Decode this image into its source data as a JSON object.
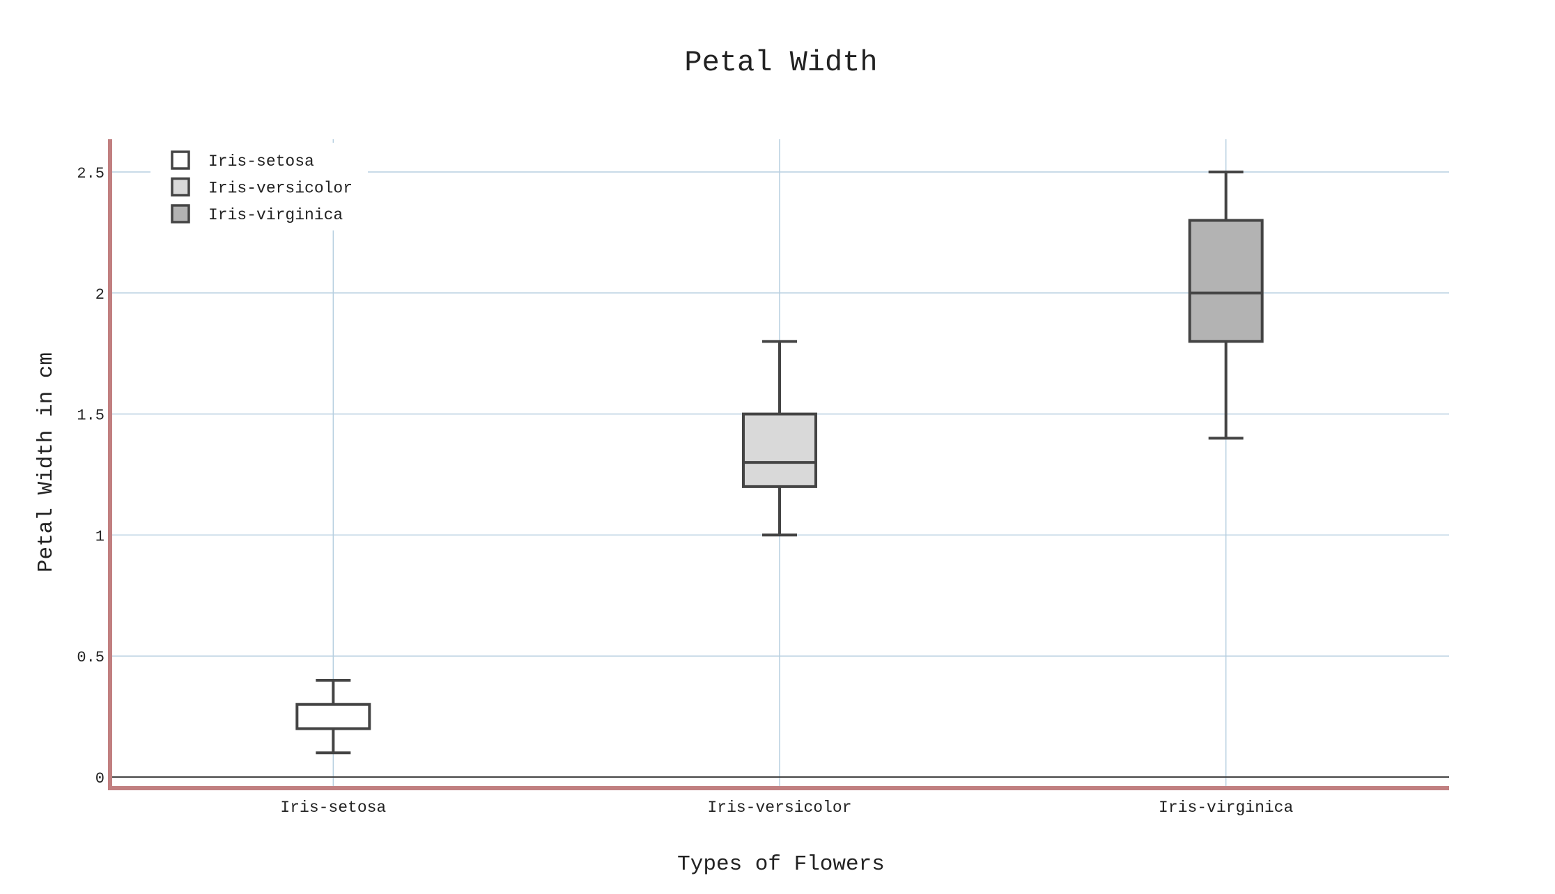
{
  "chart_data": {
    "type": "box",
    "title": "Petal Width",
    "xlabel": "Types of Flowers",
    "ylabel": "Petal Width in cm",
    "ylim": [
      -0.04,
      2.64
    ],
    "yticks": [
      0,
      0.5,
      1,
      1.5,
      2,
      2.5
    ],
    "ytick_labels": [
      "0",
      "0.5",
      "1",
      "1.5",
      "2",
      "2.5"
    ],
    "categories": [
      "Iris-setosa",
      "Iris-versicolor",
      "Iris-virginica"
    ],
    "grid": true,
    "legend_position": "top-left",
    "series": [
      {
        "name": "Iris-setosa",
        "min": 0.1,
        "q1": 0.2,
        "median": 0.2,
        "q3": 0.3,
        "max": 0.4,
        "fill": "#ffffff"
      },
      {
        "name": "Iris-versicolor",
        "min": 1.0,
        "q1": 1.2,
        "median": 1.3,
        "q3": 1.5,
        "max": 1.8,
        "fill": "#d9d9d9"
      },
      {
        "name": "Iris-virginica",
        "min": 1.4,
        "q1": 1.8,
        "median": 2.0,
        "q3": 2.3,
        "max": 2.5,
        "fill": "#b3b3b3"
      }
    ],
    "colors": {
      "axis_line": "#c17f80",
      "grid": "#b7cfe0",
      "box_stroke": "#444444",
      "zero_line": "#444444",
      "text": "#222222"
    }
  }
}
